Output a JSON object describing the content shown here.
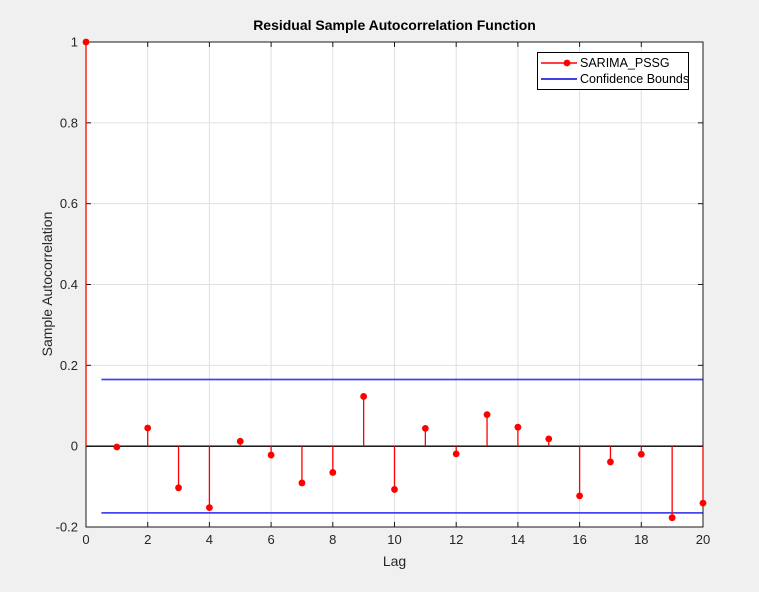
{
  "figure": {
    "title": "Residual Sample Autocorrelation Function",
    "xlabel": "Lag",
    "ylabel": "Sample Autocorrelation",
    "background": "#f0f0f0"
  },
  "legend": {
    "position": "northeast",
    "entries": [
      {
        "label": "SARIMA_PSSG",
        "color": "#ff0000",
        "line": "solid",
        "marker": "filled-circle"
      },
      {
        "label": "Confidence Bounds",
        "color": "#0000dd",
        "line": "solid",
        "marker": "none"
      }
    ]
  },
  "chart_data": {
    "type": "stem",
    "title": "Residual Sample Autocorrelation Function",
    "xlabel": "Lag",
    "ylabel": "Sample Autocorrelation",
    "xlim": [
      0,
      20
    ],
    "ylim": [
      -0.2,
      1
    ],
    "x_ticks": [
      0,
      2,
      4,
      6,
      8,
      10,
      12,
      14,
      16,
      18,
      20
    ],
    "x_tick_labels": [
      "0",
      "2",
      "4",
      "6",
      "8",
      "10",
      "12",
      "14",
      "16",
      "18",
      "20"
    ],
    "y_ticks": [
      -0.2,
      0,
      0.2,
      0.4,
      0.6,
      0.8,
      1
    ],
    "y_tick_labels": [
      "-0.2",
      "0",
      "0.2",
      "0.4",
      "0.6",
      "0.8",
      "1"
    ],
    "grid": true,
    "legend_position": "northeast",
    "series": [
      {
        "name": "SARIMA_PSSG",
        "x": [
          0,
          1,
          2,
          3,
          4,
          5,
          6,
          7,
          8,
          9,
          10,
          11,
          12,
          13,
          14,
          15,
          16,
          17,
          18,
          19,
          20
        ],
        "y": [
          1,
          -0.002,
          0.045,
          -0.103,
          -0.152,
          0.012,
          -0.022,
          -0.091,
          -0.065,
          0.123,
          -0.107,
          0.044,
          -0.019,
          0.078,
          0.047,
          0.018,
          -0.123,
          -0.039,
          -0.02,
          -0.177,
          -0.141
        ]
      }
    ],
    "confidence_bounds": {
      "upper": 0.165,
      "lower": -0.165,
      "x_start": 0.5,
      "x_end": 20,
      "name": "Confidence Bounds"
    },
    "zero_line": 0,
    "colors": {
      "series": "#ff0000",
      "bounds_line": "#4545f0",
      "zero_line": "#000000",
      "grid": "#e0e0e0",
      "axis": "#1a1a1a",
      "tick_label": "#262626",
      "plot_background": "#ffffff"
    }
  }
}
